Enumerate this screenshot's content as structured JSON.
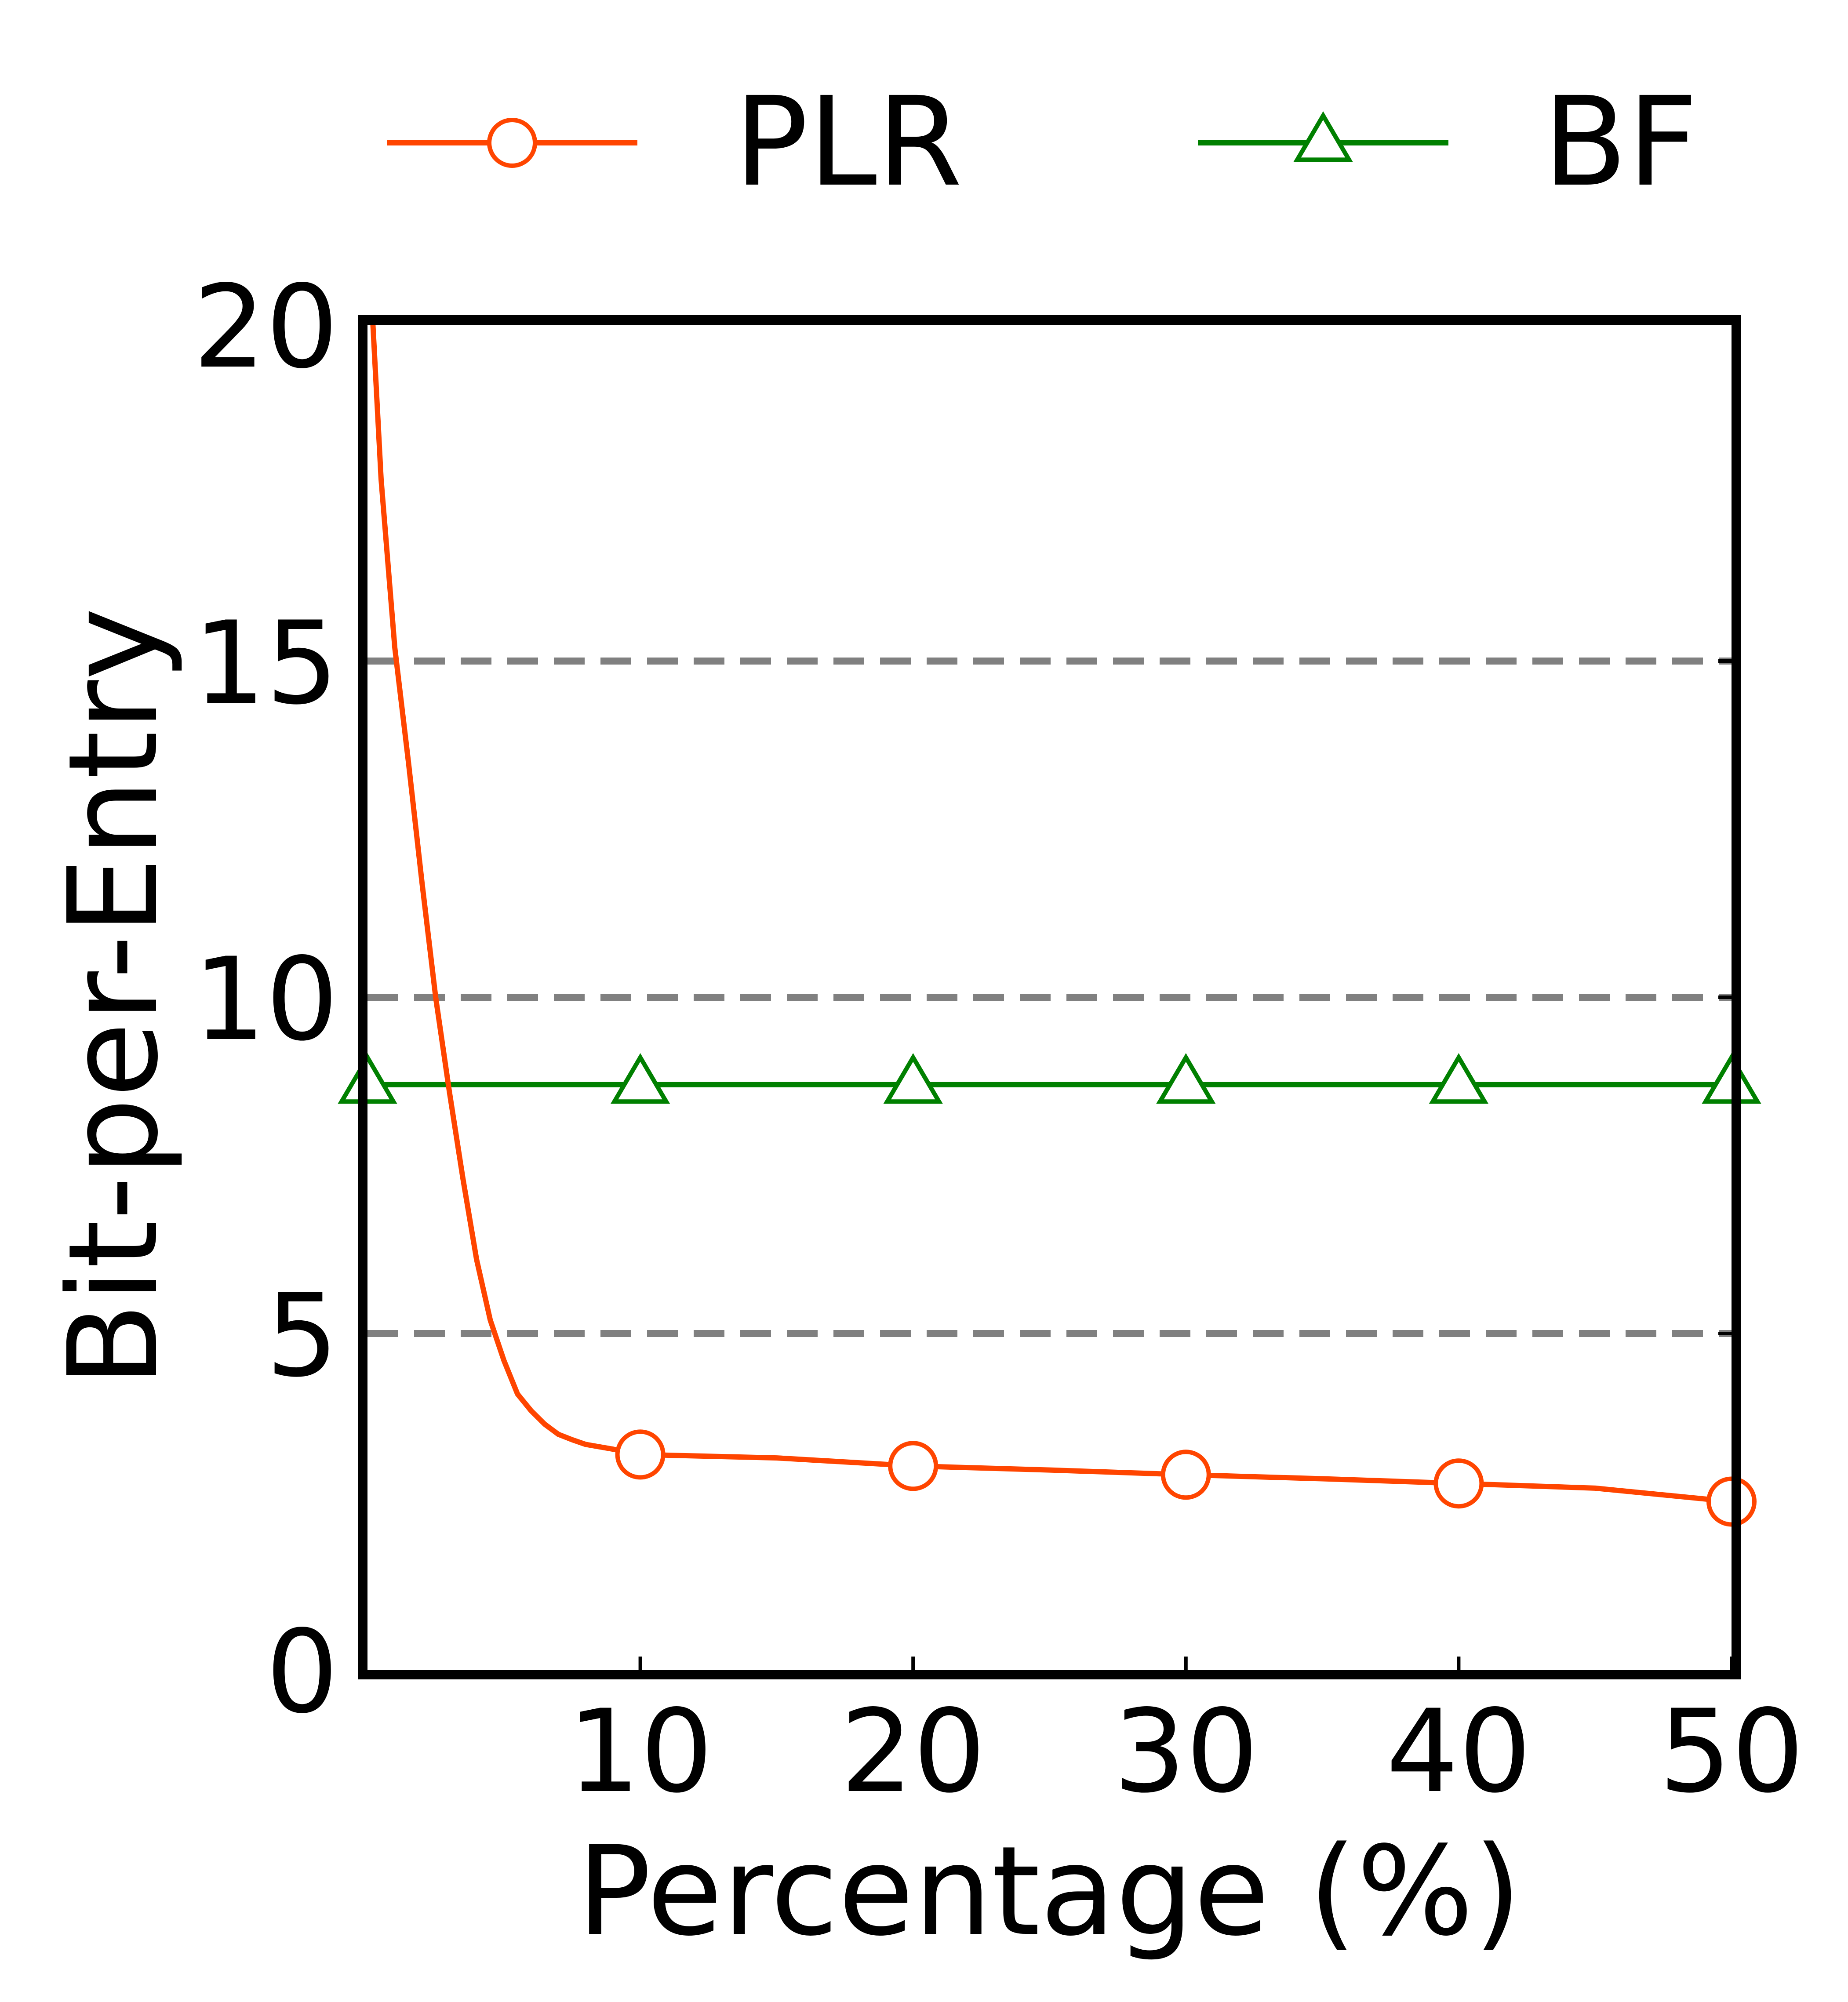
{
  "chart_data": {
    "type": "line",
    "xlabel": "Percentage (%)",
    "ylabel": "Bit-per-Entry",
    "xlim": [
      0,
      50
    ],
    "ylim": [
      0,
      20
    ],
    "x_ticks": [
      10,
      20,
      30,
      40,
      50
    ],
    "x_tick_labels": [
      "10",
      "20",
      "30",
      "40",
      "50"
    ],
    "y_ticks": [
      0,
      5,
      10,
      15,
      20
    ],
    "y_tick_labels": [
      "0",
      "5",
      "10",
      "15",
      "20"
    ],
    "gridlines_y": [
      5,
      10,
      15
    ],
    "grid_style": "dashed horizontal",
    "legend_position": "top, above plot",
    "series": [
      {
        "name": "PLR",
        "color": "#ff4500",
        "marker": "circle",
        "marker_x": [
          10,
          20,
          30,
          40,
          50
        ],
        "x": [
          0.2,
          0.5,
          1.0,
          1.5,
          2.0,
          2.5,
          3.0,
          3.5,
          4.0,
          4.5,
          5.0,
          5.5,
          6.0,
          6.5,
          7.0,
          7.5,
          8.0,
          9.0,
          10,
          15,
          20,
          25,
          30,
          35,
          40,
          45,
          50
        ],
        "y": [
          20.0,
          17.7,
          15.2,
          13.5,
          11.7,
          10.0,
          8.6,
          7.3,
          6.1,
          5.2,
          4.6,
          4.1,
          3.85,
          3.65,
          3.5,
          3.42,
          3.35,
          3.28,
          3.2,
          3.15,
          3.03,
          2.97,
          2.9,
          2.84,
          2.77,
          2.7,
          2.5
        ]
      },
      {
        "name": "BF",
        "color": "#008000",
        "marker": "triangle",
        "x": [
          0,
          10,
          20,
          30,
          40,
          50
        ],
        "y": [
          8.7,
          8.7,
          8.7,
          8.7,
          8.7,
          8.7
        ]
      }
    ]
  }
}
